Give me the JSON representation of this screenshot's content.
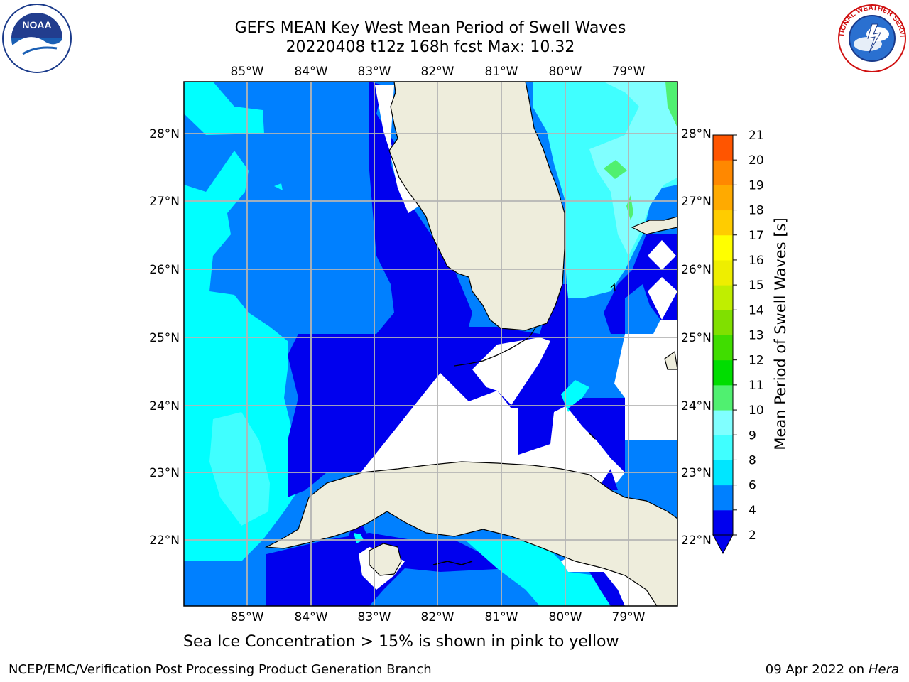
{
  "header": {
    "title_line1": "GEFS MEAN Key West Mean Period of Swell Waves",
    "title_line2": "20220408 t12z 168h fcst   Max: 10.32"
  },
  "map": {
    "lon_labels": [
      "85°W",
      "84°W",
      "83°W",
      "82°W",
      "81°W",
      "80°W",
      "79°W"
    ],
    "lat_labels": [
      "28°N",
      "27°N",
      "26°N",
      "25°N",
      "24°N",
      "23°N",
      "22°N"
    ],
    "colors": {
      "land": "#eeeddc",
      "coast": "#000000",
      "grid": "#b4b4b4",
      "band_2_4": "#0000ee",
      "band_4_6": "#0080ff",
      "band_6_8": "#00ffff",
      "band_8_9": "#40ffff",
      "band_9_10": "#50f070"
    }
  },
  "colorbar": {
    "title": "Mean Period of Swell Waves [s]",
    "tick_labels": [
      "2",
      "4",
      "6",
      "8",
      "9",
      "10",
      "11",
      "12",
      "13",
      "14",
      "15",
      "16",
      "17",
      "18",
      "19",
      "20",
      "21"
    ],
    "colors": [
      "#0000ee",
      "#0080ff",
      "#00e6ff",
      "#40ffff",
      "#80ffff",
      "#50f070",
      "#00dd00",
      "#40dd00",
      "#80e000",
      "#c0ee00",
      "#eeee00",
      "#ffff00",
      "#ffcc00",
      "#ffaa00",
      "#ff8800",
      "#ff5500",
      "#ff2200",
      "#ff0000"
    ]
  },
  "footer": {
    "sea_ice_note": "Sea Ice Concentration > 15% is shown in pink to yellow",
    "left": "NCEP/EMC/Verification Post Processing Product Generation Branch",
    "date": "09 Apr 2022 on ",
    "host": "Hera"
  },
  "logos": {
    "noaa_text": "NOAA",
    "nws_text": "NATIONAL WEATHER SERVICE"
  }
}
